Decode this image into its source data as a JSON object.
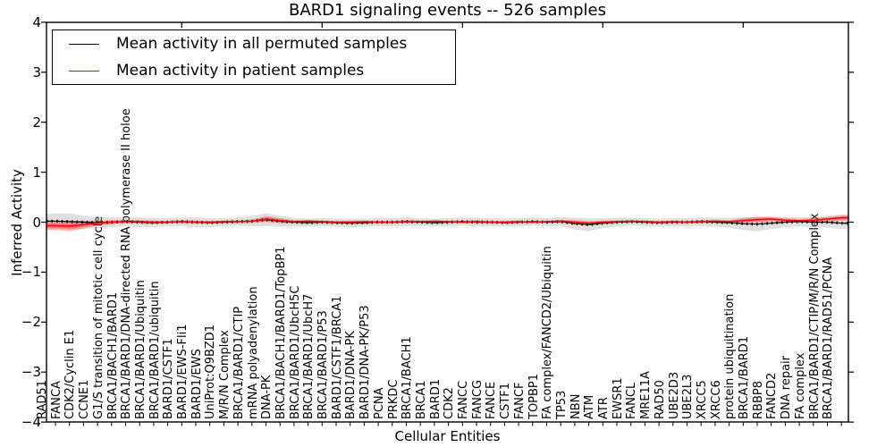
{
  "title": "BARD1 signaling events -- 526 samples",
  "chart_data": {
    "type": "line",
    "title": "BARD1 signaling events -- 526 samples",
    "xlabel": "Cellular Entities",
    "ylabel": "Inferred Activity",
    "ylim": [
      -4,
      4
    ],
    "grid": false,
    "legend_position": "upper left",
    "yticks_values": [
      4,
      3,
      2,
      1,
      0,
      -1,
      -2,
      -3,
      -4
    ],
    "yticks_labels": [
      "4",
      "3",
      "2",
      "1",
      "0",
      "−1",
      "−2",
      "−3",
      "−4"
    ],
    "categories": [
      "RAD51",
      "FANCA",
      "CDK2/Cyclin E1",
      "CCNE1",
      "G1/S transition of mitotic cell cycle",
      "BRCA1/BACH1/BARD1",
      "BRCA1/BARD1/DNA-directed RNA polymerase II holoe",
      "BRCA1/BARD1/Ubiquitin",
      "BRCA1/BARD1/ubiquitin",
      "BARD1/CSTF1",
      "BARD1/EWS-Fli1",
      "BARD1/EWS",
      "UniProt:Q9BZD1",
      "M/R/N Complex",
      "BRCA1/BARD1/CTIP",
      "mRNA polyadenylation",
      "DNA-PK",
      "BRCA1/BACH1/BARD1/TopBP1",
      "BRCA1/BARD1/UbcH5C",
      "BRCA1/BARD1/UbcH7",
      "BRCA1/BARD1/P53",
      "BARD1/CSTF1/BRCA1",
      "BARD1/DNA-PK",
      "BARD1/DNA-PK/P53",
      "PCNA",
      "PRKDC",
      "BRCA1/BACH1",
      "BRCA1",
      "BARD1",
      "CDK2",
      "FANCC",
      "FANCG",
      "FANCE",
      "CSTF1",
      "FANCF",
      "TOPBP1",
      "FA complex/FANCD2/Ubiquitin",
      "TP53",
      "NBN",
      "ATM",
      "ATR",
      "EWSR1",
      "FANCL",
      "MRE11A",
      "RAD50",
      "UBE2D3",
      "UBE2L3",
      "XRCC5",
      "XRCC6",
      "protein ubiquitination",
      "BRCA1/BARD1",
      "RBBP8",
      "FANCD2",
      "DNA repair",
      "FA complex",
      "BRCA1/BARD1/CTIP/M/R/N Complex",
      "BRCA1/BARD1/RAD51/PCNA"
    ],
    "series": [
      {
        "name": "Mean activity in all permuted samples",
        "color": "#000000",
        "band_color": "#8c8c8c",
        "values": [
          0.02,
          0.01,
          0.0,
          -0.01,
          0.0,
          0.01,
          0.0,
          -0.01,
          0.0,
          0.01,
          0.0,
          -0.01,
          0.0,
          0.01,
          0.02,
          0.05,
          0.02,
          0.0,
          -0.01,
          0.0,
          -0.01,
          -0.02,
          -0.01,
          0.0,
          0.0,
          0.01,
          0.0,
          -0.01,
          0.0,
          0.01,
          0.0,
          0.0,
          -0.01,
          0.0,
          0.01,
          0.0,
          0.01,
          -0.03,
          -0.05,
          -0.02,
          0.0,
          0.01,
          0.0,
          -0.01,
          0.0,
          0.0,
          0.01,
          0.0,
          -0.01,
          -0.03,
          -0.04,
          -0.02,
          0.0,
          0.01,
          0.0,
          0.0,
          -0.02
        ],
        "band_halfwidth": [
          0.15,
          0.16,
          0.13,
          0.11,
          0.1,
          0.09,
          0.1,
          0.09,
          0.08,
          0.09,
          0.1,
          0.09,
          0.08,
          0.08,
          0.1,
          0.13,
          0.11,
          0.09,
          0.08,
          0.08,
          0.08,
          0.09,
          0.08,
          0.08,
          0.08,
          0.09,
          0.08,
          0.08,
          0.08,
          0.08,
          0.09,
          0.08,
          0.08,
          0.08,
          0.08,
          0.08,
          0.09,
          0.12,
          0.13,
          0.1,
          0.09,
          0.08,
          0.08,
          0.08,
          0.08,
          0.08,
          0.09,
          0.09,
          0.1,
          0.13,
          0.14,
          0.12,
          0.1,
          0.09,
          0.1,
          0.11,
          0.12
        ]
      },
      {
        "name": "Mean activity in patient samples",
        "color": "#ff0000",
        "band_color": "#ff0000",
        "values": [
          -0.07,
          -0.08,
          -0.05,
          -0.02,
          0.0,
          0.01,
          0.01,
          0.0,
          0.0,
          0.01,
          0.0,
          0.0,
          0.01,
          0.01,
          0.02,
          0.06,
          0.03,
          0.01,
          0.02,
          0.01,
          0.0,
          0.0,
          0.01,
          0.0,
          0.0,
          0.01,
          0.01,
          0.02,
          0.01,
          0.0,
          0.01,
          0.0,
          0.0,
          0.01,
          0.0,
          0.01,
          0.02,
          0.0,
          -0.02,
          0.0,
          0.01,
          0.02,
          0.01,
          0.0,
          0.01,
          0.0,
          0.01,
          0.02,
          0.01,
          0.03,
          0.05,
          0.06,
          0.04,
          0.03,
          0.04,
          0.06,
          0.09
        ],
        "band_halfwidth": [
          0.09,
          0.1,
          0.08,
          0.05,
          0.04,
          0.03,
          0.03,
          0.03,
          0.02,
          0.03,
          0.03,
          0.02,
          0.02,
          0.02,
          0.03,
          0.06,
          0.05,
          0.03,
          0.03,
          0.02,
          0.02,
          0.03,
          0.02,
          0.02,
          0.02,
          0.03,
          0.02,
          0.02,
          0.02,
          0.02,
          0.03,
          0.02,
          0.02,
          0.02,
          0.02,
          0.02,
          0.03,
          0.04,
          0.04,
          0.03,
          0.02,
          0.02,
          0.02,
          0.02,
          0.02,
          0.02,
          0.03,
          0.03,
          0.03,
          0.05,
          0.06,
          0.05,
          0.04,
          0.03,
          0.04,
          0.05,
          0.06
        ]
      }
    ]
  }
}
